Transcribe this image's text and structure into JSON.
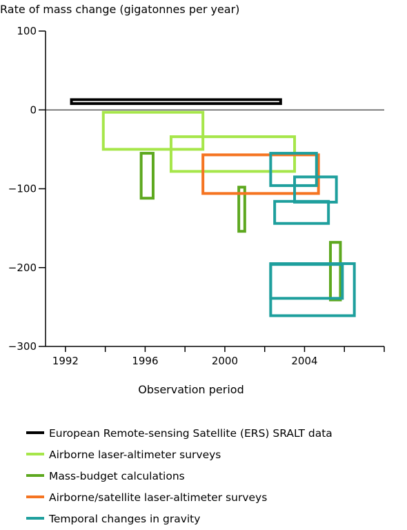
{
  "chart_data": {
    "type": "box-range",
    "title": "",
    "ylabel": "Rate of mass change (gigatonnes per year)",
    "xlabel": "Observation period",
    "xlim": [
      1991,
      2008
    ],
    "ylim": [
      -300,
      100
    ],
    "x_ticks": [
      1992,
      1996,
      2000,
      2004
    ],
    "x_minor_ticks": [
      1994,
      1998,
      2002,
      2006,
      2008
    ],
    "y_ticks": [
      100,
      0,
      -100,
      -200,
      -300
    ],
    "y_tick_labels": [
      "100",
      "0",
      "−100",
      "−200",
      "−300"
    ],
    "zero_line": true,
    "grid": false,
    "legend_position": "bottom",
    "series": [
      {
        "name": "European Remote-sensing Satellite (ERS) SRALT data",
        "color": "#000000",
        "boxes": [
          {
            "x0": 1992.3,
            "x1": 2002.8,
            "y0": 8,
            "y1": 13
          }
        ]
      },
      {
        "name": "Airborne laser-altimeter surveys",
        "color": "#a6e64a",
        "boxes": [
          {
            "x0": 1993.9,
            "x1": 1998.9,
            "y0": -50,
            "y1": -3
          },
          {
            "x0": 1997.3,
            "x1": 2003.5,
            "y0": -78,
            "y1": -34
          }
        ]
      },
      {
        "name": "Mass-budget calculations",
        "color": "#5da81f",
        "boxes": [
          {
            "x0": 1995.8,
            "x1": 1996.4,
            "y0": -112,
            "y1": -55
          },
          {
            "x0": 2000.7,
            "x1": 2001.0,
            "y0": -154,
            "y1": -98
          },
          {
            "x0": 2005.3,
            "x1": 2005.8,
            "y0": -241,
            "y1": -168
          }
        ]
      },
      {
        "name": "Airborne/satellite laser-altimeter surveys",
        "color": "#f57421",
        "boxes": [
          {
            "x0": 1998.9,
            "x1": 2004.7,
            "y0": -106,
            "y1": -57
          }
        ]
      },
      {
        "name": "Temporal changes in gravity",
        "color": "#1e9f9d",
        "boxes": [
          {
            "x0": 2002.3,
            "x1": 2004.6,
            "y0": -96,
            "y1": -55
          },
          {
            "x0": 2003.5,
            "x1": 2005.6,
            "y0": -117,
            "y1": -85
          },
          {
            "x0": 2002.5,
            "x1": 2005.2,
            "y0": -144,
            "y1": -116
          },
          {
            "x0": 2002.3,
            "x1": 2006.5,
            "y0": -261,
            "y1": -195
          },
          {
            "x0": 2002.3,
            "x1": 2005.9,
            "y0": -239,
            "y1": -196
          }
        ]
      }
    ]
  }
}
